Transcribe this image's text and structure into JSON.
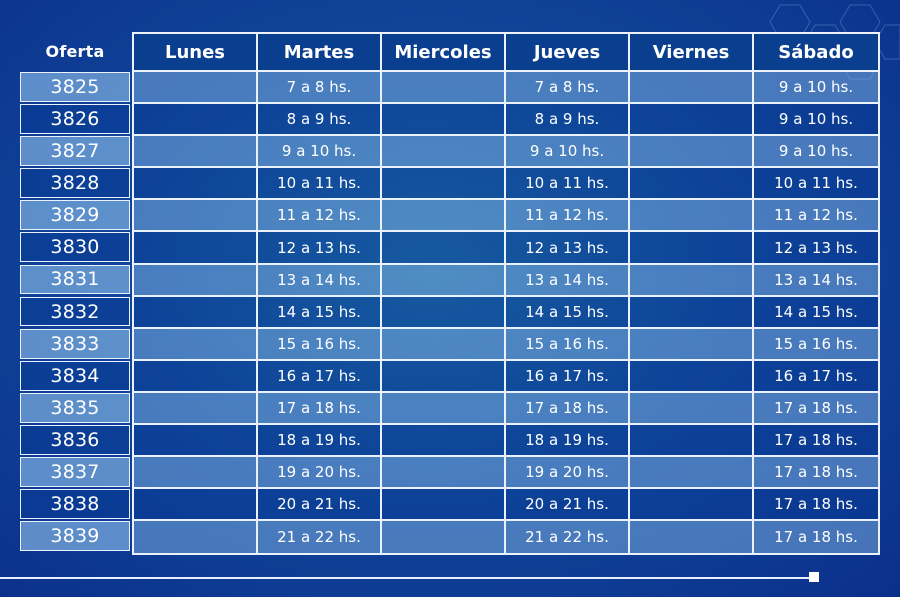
{
  "header": {
    "oferta_label": "Oferta",
    "days": [
      "Lunes",
      "Martes",
      "Miercoles",
      "Jueves",
      "Viernes",
      "Sábado"
    ]
  },
  "rows": [
    {
      "oferta": "3825",
      "lunes": "",
      "martes": "7 a 8 hs.",
      "miercoles": "",
      "jueves": "7 a 8 hs.",
      "viernes": "",
      "sabado": "9 a 10 hs."
    },
    {
      "oferta": "3826",
      "lunes": "",
      "martes": "8 a 9 hs.",
      "miercoles": "",
      "jueves": "8 a 9 hs.",
      "viernes": "",
      "sabado": "9 a 10 hs."
    },
    {
      "oferta": "3827",
      "lunes": "",
      "martes": "9 a 10 hs.",
      "miercoles": "",
      "jueves": "9 a 10 hs.",
      "viernes": "",
      "sabado": "9 a 10 hs."
    },
    {
      "oferta": "3828",
      "lunes": "",
      "martes": "10 a 11 hs.",
      "miercoles": "",
      "jueves": "10 a 11 hs.",
      "viernes": "",
      "sabado": "10 a 11 hs."
    },
    {
      "oferta": "3829",
      "lunes": "",
      "martes": "11 a 12 hs.",
      "miercoles": "",
      "jueves": "11 a 12 hs.",
      "viernes": "",
      "sabado": "11 a 12 hs."
    },
    {
      "oferta": "3830",
      "lunes": "",
      "martes": "12 a 13 hs.",
      "miercoles": "",
      "jueves": "12 a 13 hs.",
      "viernes": "",
      "sabado": "12 a 13 hs."
    },
    {
      "oferta": "3831",
      "lunes": "",
      "martes": "13 a 14 hs.",
      "miercoles": "",
      "jueves": "13 a 14 hs.",
      "viernes": "",
      "sabado": "13 a 14 hs."
    },
    {
      "oferta": "3832",
      "lunes": "",
      "martes": "14 a 15 hs.",
      "miercoles": "",
      "jueves": "14 a 15 hs.",
      "viernes": "",
      "sabado": "14 a 15 hs."
    },
    {
      "oferta": "3833",
      "lunes": "",
      "martes": "15 a 16 hs.",
      "miercoles": "",
      "jueves": "15 a 16 hs.",
      "viernes": "",
      "sabado": "15 a 16 hs."
    },
    {
      "oferta": "3834",
      "lunes": "",
      "martes": "16 a 17 hs.",
      "miercoles": "",
      "jueves": "16 a 17 hs.",
      "viernes": "",
      "sabado": "16 a 17 hs."
    },
    {
      "oferta": "3835",
      "lunes": "",
      "martes": "17 a 18 hs.",
      "miercoles": "",
      "jueves": "17 a 18 hs.",
      "viernes": "",
      "sabado": "17 a 18 hs."
    },
    {
      "oferta": "3836",
      "lunes": "",
      "martes": "18 a 19 hs.",
      "miercoles": "",
      "jueves": "18 a 19 hs.",
      "viernes": "",
      "sabado": "17 a 18 hs."
    },
    {
      "oferta": "3837",
      "lunes": "",
      "martes": "19 a 20 hs.",
      "miercoles": "",
      "jueves": "19 a 20 hs.",
      "viernes": "",
      "sabado": "17 a 18 hs."
    },
    {
      "oferta": "3838",
      "lunes": "",
      "martes": "20 a 21 hs.",
      "miercoles": "",
      "jueves": "20 a 21 hs.",
      "viernes": "",
      "sabado": "17 a 18 hs."
    },
    {
      "oferta": "3839",
      "lunes": "",
      "martes": "21 a 22 hs.",
      "miercoles": "",
      "jueves": "21 a 22 hs.",
      "viernes": "",
      "sabado": "17 a 18 hs."
    }
  ],
  "colors": {
    "background": "#10479a",
    "header_fill": "#0a3e8f",
    "row_light": "#7aaad8",
    "border": "#eaf2ff"
  }
}
